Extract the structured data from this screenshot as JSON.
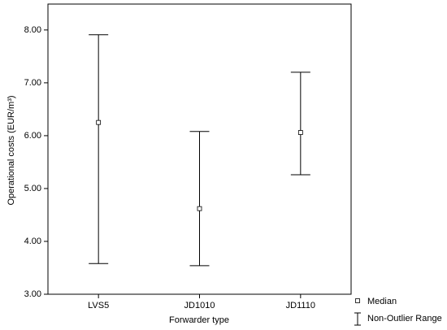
{
  "chart_data": {
    "type": "range",
    "xlabel": "Forwarder type",
    "ylabel": "Operational costs (EUR/m³)",
    "categories": [
      "LVS5",
      "JD1010",
      "JD1110"
    ],
    "series": [
      {
        "name": "Median",
        "values": [
          6.25,
          4.62,
          6.06
        ]
      },
      {
        "name": "Non-Outlier Range",
        "low": [
          3.58,
          3.54,
          5.26
        ],
        "high": [
          7.91,
          6.08,
          7.2
        ]
      }
    ],
    "ylim": [
      3,
      8.49
    ],
    "yticks": [
      {
        "value": 3,
        "label": "3.00"
      },
      {
        "value": 4,
        "label": "4.00"
      },
      {
        "value": 5,
        "label": "5.00"
      },
      {
        "value": 6,
        "label": "6.00"
      },
      {
        "value": 7,
        "label": "7.00"
      },
      {
        "value": 8,
        "label": "8.00"
      }
    ],
    "color": "#000000"
  }
}
